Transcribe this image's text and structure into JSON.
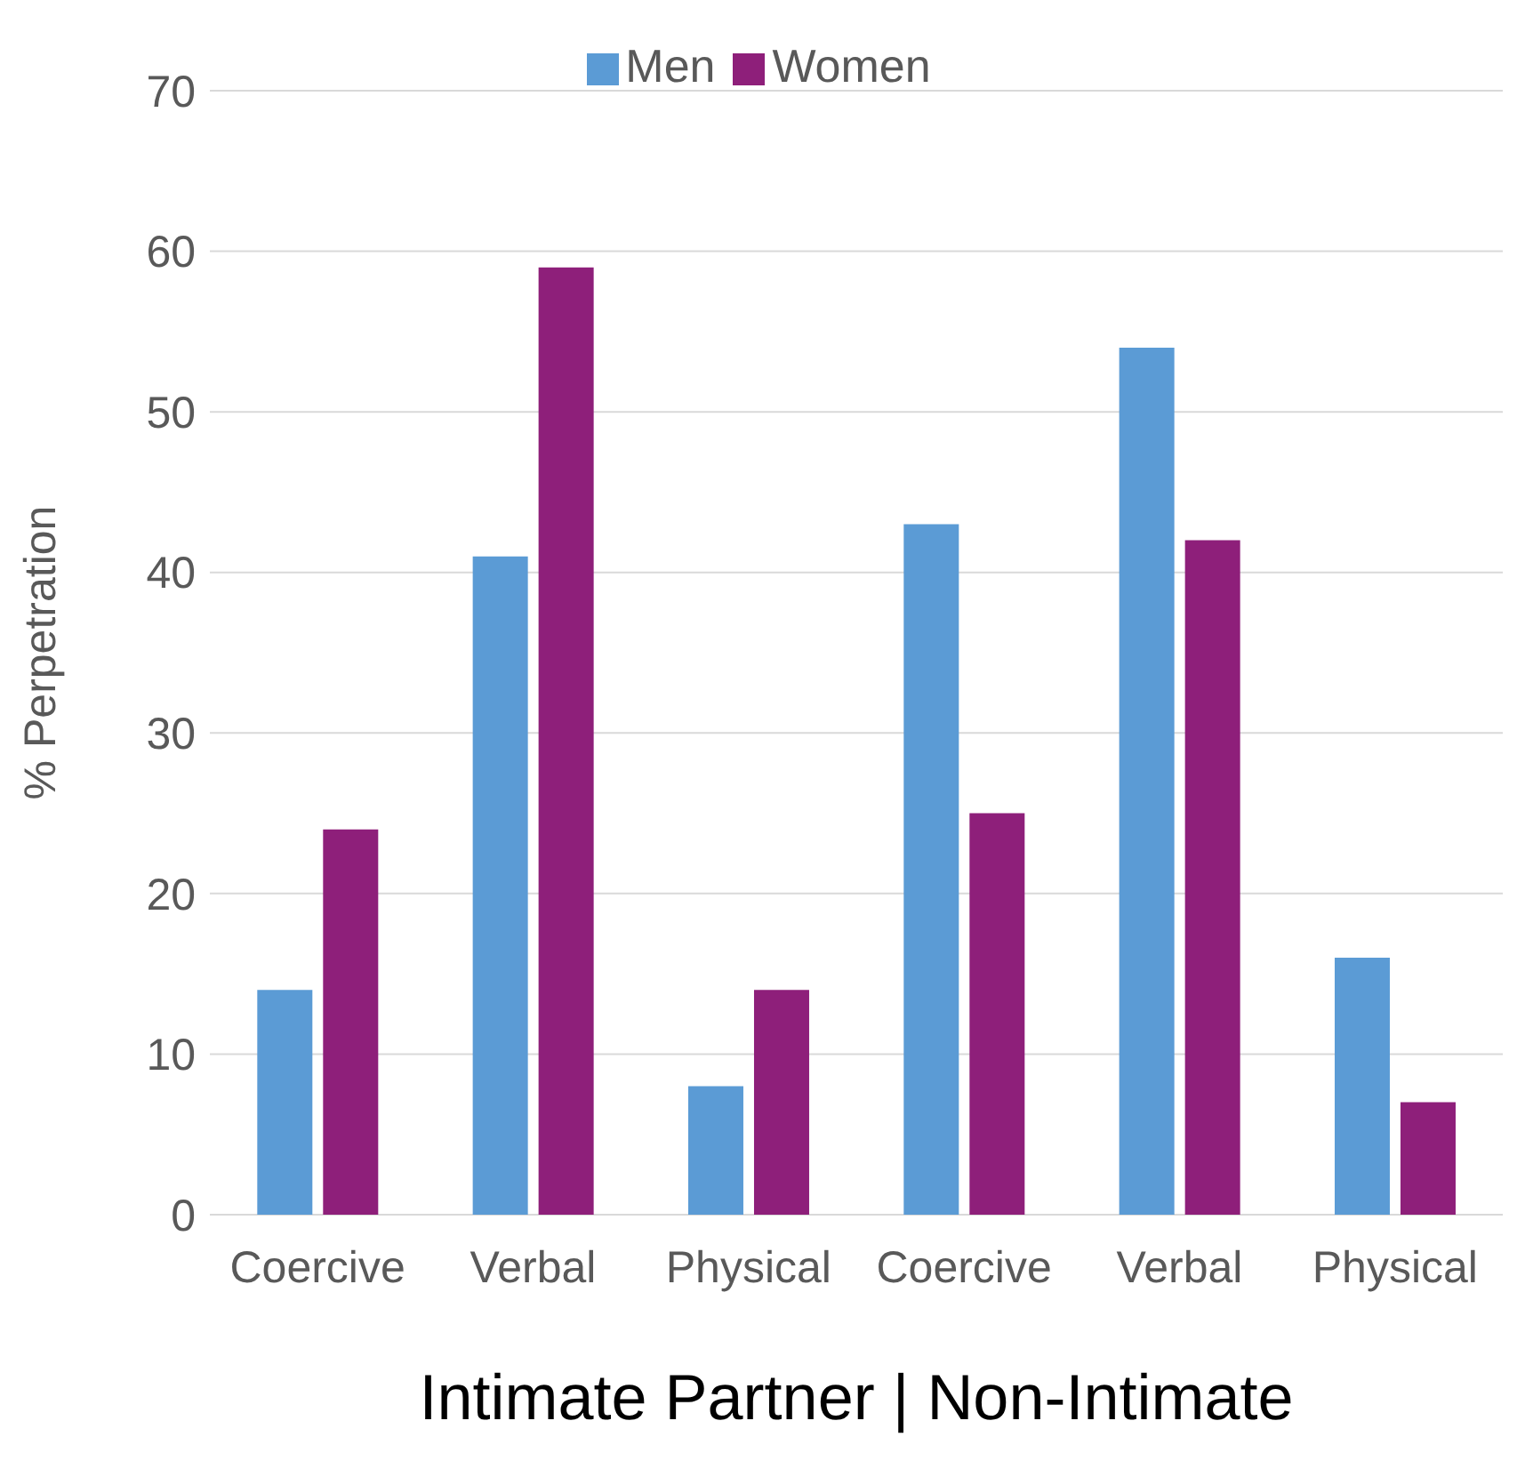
{
  "chart_data": {
    "type": "bar",
    "xlabel": "Intimate Partner | Non-Intimate",
    "ylabel": "% Perpetration",
    "categories": [
      "Coercive",
      "Verbal",
      "Physical",
      "Coercive",
      "Verbal",
      "Physical"
    ],
    "series": [
      {
        "name": "Men",
        "color": "#5b9bd5",
        "values": [
          14,
          41,
          8,
          43,
          54,
          16
        ]
      },
      {
        "name": "Women",
        "color": "#8e1f7a",
        "values": [
          24,
          59,
          14,
          25,
          42,
          7
        ]
      }
    ],
    "ylim": [
      0,
      70
    ],
    "yticks": [
      0,
      10,
      20,
      30,
      40,
      50,
      60,
      70
    ],
    "grid": "y",
    "legend": "top"
  }
}
